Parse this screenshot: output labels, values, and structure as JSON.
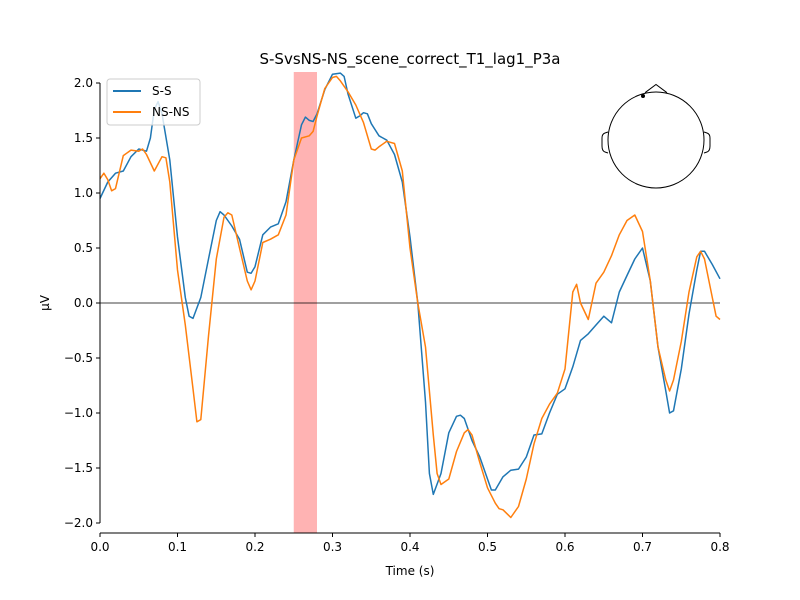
{
  "chart_data": {
    "type": "line",
    "title": "S-SvsNS-NS_scene_correct_T1_lag1_P3a",
    "xlabel": "Time (s)",
    "ylabel": "µV",
    "xlim": [
      0,
      0.8
    ],
    "ylim": [
      -2.1,
      2.1
    ],
    "x_ticks": [
      0.0,
      0.1,
      0.2,
      0.3,
      0.4,
      0.5,
      0.6,
      0.7,
      0.8
    ],
    "x_tick_labels": [
      "0.0",
      "0.1",
      "0.2",
      "0.3",
      "0.4",
      "0.5",
      "0.6",
      "0.7",
      "0.8"
    ],
    "y_ticks": [
      -2.0,
      -1.5,
      -1.0,
      -0.5,
      0.0,
      0.5,
      1.0,
      1.5,
      2.0
    ],
    "y_tick_labels": [
      "−2.0",
      "−1.5",
      "−1.0",
      "−0.5",
      "0.0",
      "0.5",
      "1.0",
      "1.5",
      "2.0"
    ],
    "highlight_span": {
      "x0": 0.25,
      "x1": 0.28,
      "color": "#ffb3b3"
    },
    "zero_line": true,
    "grid": false,
    "legend_position": "top-left",
    "inset": "head-topomap-sensor-location",
    "series": [
      {
        "name": "S-S",
        "color": "#1f77b4",
        "points": [
          [
            0.0,
            0.95
          ],
          [
            0.01,
            1.1
          ],
          [
            0.02,
            1.18
          ],
          [
            0.03,
            1.2
          ],
          [
            0.04,
            1.33
          ],
          [
            0.05,
            1.4
          ],
          [
            0.06,
            1.38
          ],
          [
            0.065,
            1.5
          ],
          [
            0.07,
            1.76
          ],
          [
            0.075,
            1.83
          ],
          [
            0.08,
            1.72
          ],
          [
            0.09,
            1.3
          ],
          [
            0.1,
            0.6
          ],
          [
            0.11,
            0.05
          ],
          [
            0.115,
            -0.12
          ],
          [
            0.12,
            -0.14
          ],
          [
            0.13,
            0.05
          ],
          [
            0.14,
            0.4
          ],
          [
            0.15,
            0.75
          ],
          [
            0.155,
            0.83
          ],
          [
            0.16,
            0.8
          ],
          [
            0.17,
            0.7
          ],
          [
            0.18,
            0.58
          ],
          [
            0.19,
            0.28
          ],
          [
            0.195,
            0.27
          ],
          [
            0.2,
            0.33
          ],
          [
            0.21,
            0.62
          ],
          [
            0.22,
            0.69
          ],
          [
            0.23,
            0.72
          ],
          [
            0.24,
            0.92
          ],
          [
            0.25,
            1.3
          ],
          [
            0.26,
            1.62
          ],
          [
            0.265,
            1.69
          ],
          [
            0.27,
            1.66
          ],
          [
            0.275,
            1.65
          ],
          [
            0.28,
            1.72
          ],
          [
            0.29,
            1.94
          ],
          [
            0.3,
            2.08
          ],
          [
            0.31,
            2.09
          ],
          [
            0.315,
            2.06
          ],
          [
            0.32,
            1.9
          ],
          [
            0.33,
            1.68
          ],
          [
            0.335,
            1.7
          ],
          [
            0.34,
            1.73
          ],
          [
            0.345,
            1.72
          ],
          [
            0.35,
            1.63
          ],
          [
            0.36,
            1.52
          ],
          [
            0.37,
            1.48
          ],
          [
            0.38,
            1.35
          ],
          [
            0.39,
            1.1
          ],
          [
            0.4,
            0.6
          ],
          [
            0.41,
            0.0
          ],
          [
            0.42,
            -0.9
          ],
          [
            0.425,
            -1.55
          ],
          [
            0.43,
            -1.74
          ],
          [
            0.44,
            -1.55
          ],
          [
            0.45,
            -1.18
          ],
          [
            0.46,
            -1.03
          ],
          [
            0.465,
            -1.02
          ],
          [
            0.47,
            -1.05
          ],
          [
            0.48,
            -1.25
          ],
          [
            0.49,
            -1.4
          ],
          [
            0.5,
            -1.6
          ],
          [
            0.505,
            -1.7
          ],
          [
            0.51,
            -1.7
          ],
          [
            0.52,
            -1.58
          ],
          [
            0.53,
            -1.52
          ],
          [
            0.54,
            -1.51
          ],
          [
            0.55,
            -1.4
          ],
          [
            0.56,
            -1.2
          ],
          [
            0.57,
            -1.19
          ],
          [
            0.58,
            -1.0
          ],
          [
            0.59,
            -0.83
          ],
          [
            0.6,
            -0.78
          ],
          [
            0.61,
            -0.58
          ],
          [
            0.62,
            -0.34
          ],
          [
            0.63,
            -0.28
          ],
          [
            0.64,
            -0.2
          ],
          [
            0.65,
            -0.12
          ],
          [
            0.66,
            -0.18
          ],
          [
            0.67,
            0.1
          ],
          [
            0.68,
            0.25
          ],
          [
            0.69,
            0.4
          ],
          [
            0.7,
            0.5
          ],
          [
            0.71,
            0.2
          ],
          [
            0.72,
            -0.4
          ],
          [
            0.73,
            -0.8
          ],
          [
            0.735,
            -1.0
          ],
          [
            0.74,
            -0.98
          ],
          [
            0.75,
            -0.6
          ],
          [
            0.76,
            -0.1
          ],
          [
            0.77,
            0.3
          ],
          [
            0.775,
            0.47
          ],
          [
            0.78,
            0.47
          ],
          [
            0.79,
            0.35
          ],
          [
            0.8,
            0.22
          ]
        ]
      },
      {
        "name": "NS-NS",
        "color": "#ff7f0e",
        "points": [
          [
            0.0,
            1.13
          ],
          [
            0.005,
            1.18
          ],
          [
            0.01,
            1.12
          ],
          [
            0.015,
            1.02
          ],
          [
            0.02,
            1.04
          ],
          [
            0.03,
            1.34
          ],
          [
            0.04,
            1.39
          ],
          [
            0.05,
            1.38
          ],
          [
            0.055,
            1.4
          ],
          [
            0.06,
            1.35
          ],
          [
            0.07,
            1.2
          ],
          [
            0.08,
            1.33
          ],
          [
            0.085,
            1.32
          ],
          [
            0.09,
            1.1
          ],
          [
            0.1,
            0.3
          ],
          [
            0.11,
            -0.2
          ],
          [
            0.12,
            -0.78
          ],
          [
            0.125,
            -1.08
          ],
          [
            0.13,
            -1.06
          ],
          [
            0.14,
            -0.3
          ],
          [
            0.15,
            0.4
          ],
          [
            0.16,
            0.78
          ],
          [
            0.165,
            0.82
          ],
          [
            0.17,
            0.8
          ],
          [
            0.18,
            0.5
          ],
          [
            0.19,
            0.2
          ],
          [
            0.195,
            0.12
          ],
          [
            0.2,
            0.2
          ],
          [
            0.21,
            0.55
          ],
          [
            0.22,
            0.58
          ],
          [
            0.23,
            0.62
          ],
          [
            0.24,
            0.8
          ],
          [
            0.25,
            1.3
          ],
          [
            0.26,
            1.5
          ],
          [
            0.27,
            1.52
          ],
          [
            0.275,
            1.56
          ],
          [
            0.28,
            1.7
          ],
          [
            0.29,
            1.95
          ],
          [
            0.3,
            2.05
          ],
          [
            0.305,
            2.06
          ],
          [
            0.31,
            2.02
          ],
          [
            0.32,
            1.92
          ],
          [
            0.33,
            1.8
          ],
          [
            0.34,
            1.64
          ],
          [
            0.35,
            1.4
          ],
          [
            0.355,
            1.39
          ],
          [
            0.36,
            1.42
          ],
          [
            0.37,
            1.47
          ],
          [
            0.38,
            1.45
          ],
          [
            0.39,
            1.2
          ],
          [
            0.4,
            0.5
          ],
          [
            0.41,
            0.0
          ],
          [
            0.42,
            -0.4
          ],
          [
            0.43,
            -1.2
          ],
          [
            0.435,
            -1.55
          ],
          [
            0.44,
            -1.65
          ],
          [
            0.45,
            -1.6
          ],
          [
            0.46,
            -1.35
          ],
          [
            0.47,
            -1.18
          ],
          [
            0.475,
            -1.15
          ],
          [
            0.48,
            -1.2
          ],
          [
            0.49,
            -1.45
          ],
          [
            0.5,
            -1.68
          ],
          [
            0.51,
            -1.82
          ],
          [
            0.515,
            -1.87
          ],
          [
            0.52,
            -1.88
          ],
          [
            0.53,
            -1.95
          ],
          [
            0.54,
            -1.85
          ],
          [
            0.55,
            -1.6
          ],
          [
            0.56,
            -1.28
          ],
          [
            0.57,
            -1.05
          ],
          [
            0.58,
            -0.92
          ],
          [
            0.59,
            -0.82
          ],
          [
            0.6,
            -0.6
          ],
          [
            0.61,
            0.1
          ],
          [
            0.615,
            0.17
          ],
          [
            0.62,
            0.0
          ],
          [
            0.63,
            -0.15
          ],
          [
            0.64,
            0.18
          ],
          [
            0.65,
            0.28
          ],
          [
            0.66,
            0.43
          ],
          [
            0.67,
            0.62
          ],
          [
            0.68,
            0.75
          ],
          [
            0.69,
            0.8
          ],
          [
            0.7,
            0.65
          ],
          [
            0.71,
            0.2
          ],
          [
            0.72,
            -0.4
          ],
          [
            0.73,
            -0.7
          ],
          [
            0.735,
            -0.8
          ],
          [
            0.74,
            -0.7
          ],
          [
            0.75,
            -0.35
          ],
          [
            0.76,
            0.1
          ],
          [
            0.77,
            0.42
          ],
          [
            0.775,
            0.47
          ],
          [
            0.78,
            0.4
          ],
          [
            0.79,
            0.05
          ],
          [
            0.795,
            -0.12
          ],
          [
            0.8,
            -0.15
          ]
        ]
      }
    ]
  }
}
